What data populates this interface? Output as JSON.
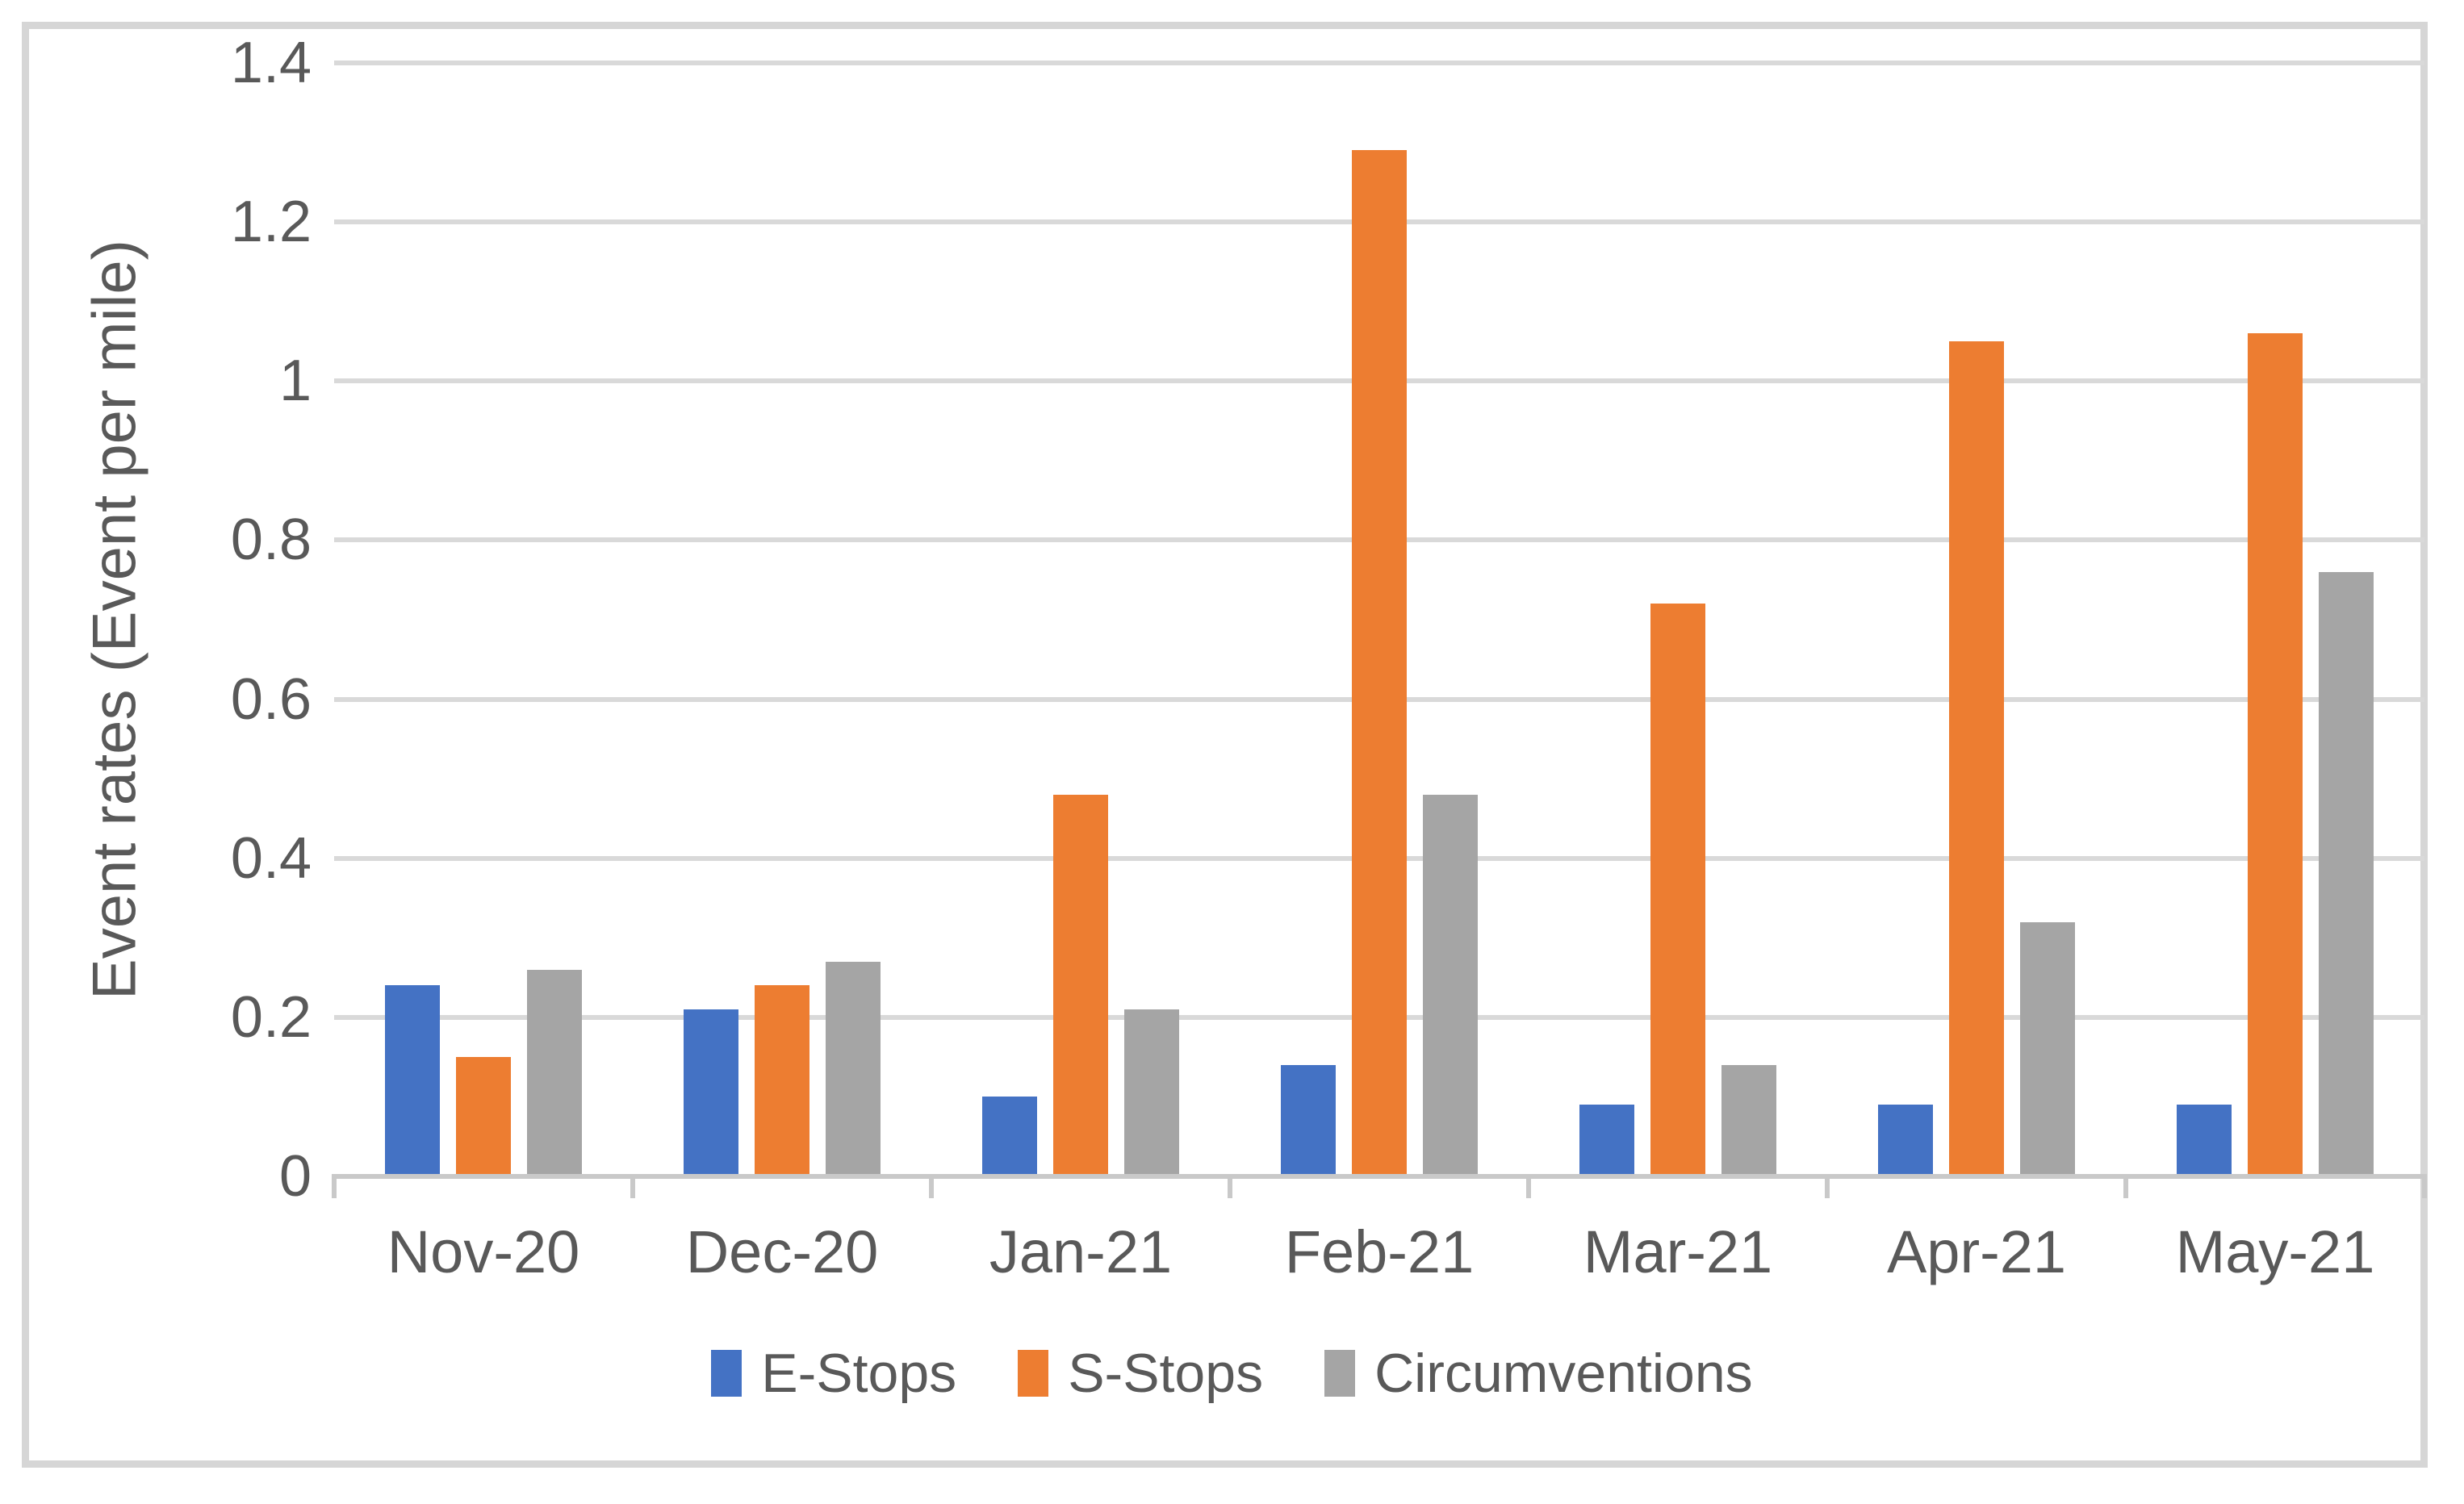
{
  "chart_data": {
    "type": "bar",
    "title": "",
    "xlabel": "",
    "ylabel": "Event rates (Event per mile)",
    "ylim": [
      0,
      1.4
    ],
    "y_tick_labels": [
      "0",
      "0.2",
      "0.4",
      "0.6",
      "0.8",
      "1",
      "1.2",
      "1.4"
    ],
    "y_tick_values": [
      0,
      0.2,
      0.4,
      0.6,
      0.8,
      1,
      1.2,
      1.4
    ],
    "grid": true,
    "legend_position": "bottom-center",
    "categories": [
      "Nov-20",
      "Dec-20",
      "Jan-21",
      "Feb-21",
      "Mar-21",
      "Apr-21",
      "May-21"
    ],
    "series": [
      {
        "name": "E-Stops",
        "color": "#4472c4",
        "values": [
          0.24,
          0.21,
          0.1,
          0.14,
          0.09,
          0.09,
          0.09
        ]
      },
      {
        "name": "S-Stops",
        "color": "#ed7d31",
        "values": [
          0.15,
          0.24,
          0.48,
          1.29,
          0.72,
          1.05,
          1.06
        ]
      },
      {
        "name": "Circumventions",
        "color": "#a5a5a5",
        "values": [
          0.26,
          0.27,
          0.21,
          0.48,
          0.14,
          0.32,
          0.76
        ]
      }
    ]
  }
}
